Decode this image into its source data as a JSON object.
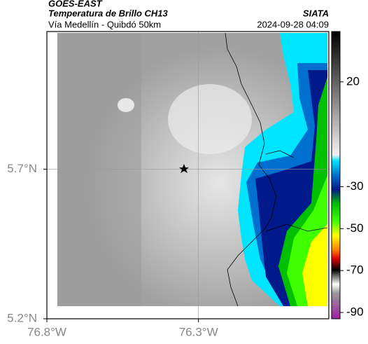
{
  "header": {
    "source": "GOES-EAST",
    "product": "Temperatura de Brillo CH13",
    "region": "Vía Medellín - Quibdó 50km",
    "brand": "SIATA",
    "timestamp": "2024-09-28 04:09"
  },
  "map": {
    "xlim": [
      -76.8,
      -75.87
    ],
    "ylim": [
      5.2,
      6.16
    ],
    "xticks": [
      {
        "value": -76.8,
        "label": "76.8°W"
      },
      {
        "value": -76.3,
        "label": "76.3°W"
      }
    ],
    "yticks": [
      {
        "value": 5.7,
        "label": "5.7°N"
      },
      {
        "value": 5.2,
        "label": "5.2°N"
      }
    ]
  },
  "colorbar": {
    "lim": [
      44,
      -93
    ],
    "ticks": [
      20,
      -30,
      -50,
      -70,
      -90
    ]
  }
}
